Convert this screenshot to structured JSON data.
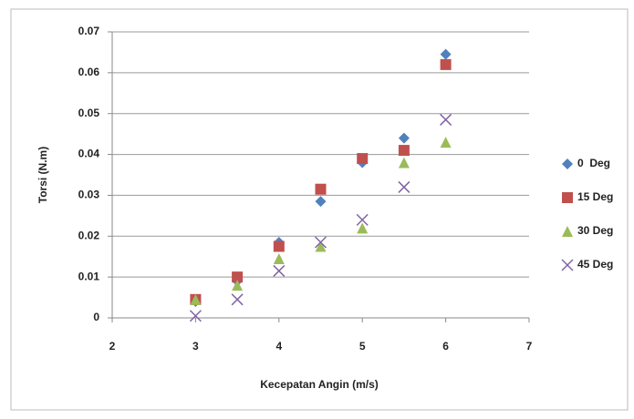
{
  "chart_data": {
    "type": "scatter",
    "x_label": "Kecepatan Angin (m/s)",
    "y_label": "Torsi (N.m)",
    "x": [
      3,
      3.5,
      4,
      4.5,
      5,
      5.5,
      6
    ],
    "series": [
      {
        "name": "0  Deg",
        "color": "#4f81bd",
        "marker": "diamond",
        "values": [
          0.004,
          0.009,
          0.0185,
          0.0285,
          0.038,
          0.044,
          0.0645
        ]
      },
      {
        "name": "15 Deg",
        "color": "#c0504d",
        "marker": "square",
        "values": [
          0.0045,
          0.01,
          0.0175,
          0.0315,
          0.039,
          0.041,
          0.062
        ]
      },
      {
        "name": "30 Deg",
        "color": "#9bbb59",
        "marker": "triangle",
        "values": [
          0.0045,
          0.008,
          0.0145,
          0.0175,
          0.022,
          0.038,
          0.043
        ]
      },
      {
        "name": "45 Deg",
        "color": "#8064a2",
        "marker": "x",
        "values": [
          0.0005,
          0.0045,
          0.0115,
          0.0185,
          0.024,
          0.032,
          0.0485
        ]
      }
    ],
    "xlim": [
      2,
      7
    ],
    "xticks": [
      2,
      3,
      4,
      5,
      6,
      7
    ],
    "ylim": [
      0,
      0.07
    ],
    "yticks": [
      0,
      0.01,
      0.02,
      0.03,
      0.04,
      0.05,
      0.06,
      0.07
    ],
    "grid": true,
    "legend": "right"
  }
}
